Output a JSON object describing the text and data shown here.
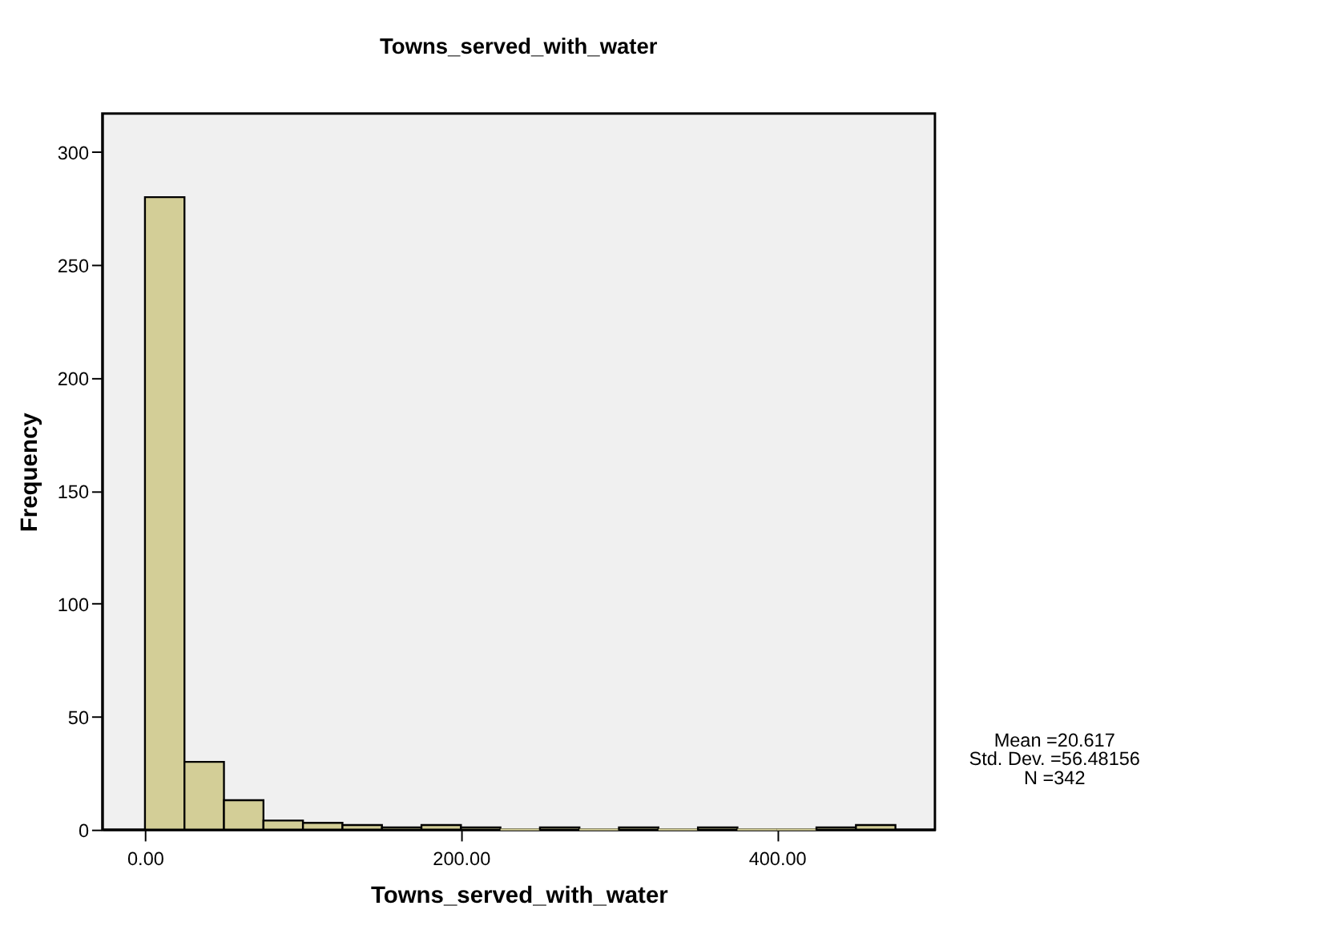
{
  "chart_data": {
    "type": "histogram",
    "title": "Towns_served_with_water",
    "xlabel": "Towns_served_with_water",
    "ylabel": "Frequency",
    "bins": [
      0,
      25,
      50,
      75,
      100,
      125,
      150,
      175,
      200,
      225,
      250,
      275,
      300,
      325,
      350,
      375,
      400,
      425,
      450,
      475
    ],
    "values": [
      280,
      30,
      13,
      4,
      3,
      2,
      1,
      2,
      1,
      0,
      1,
      0,
      1,
      0,
      1,
      0,
      0,
      1,
      2
    ],
    "color": "#d3ce97",
    "xlim": [
      -27,
      500
    ],
    "xticks": [
      {
        "value": 0,
        "label": "0.00"
      },
      {
        "value": 200,
        "label": "200.00"
      },
      {
        "value": 400,
        "label": "400.00"
      }
    ],
    "ylim": [
      0,
      317
    ],
    "yticks": [
      0,
      50,
      100,
      150,
      200,
      250,
      300
    ],
    "grid": false,
    "annotations": [
      "Mean =20.617",
      "Std. Dev. =56.48156",
      "N =342"
    ]
  }
}
